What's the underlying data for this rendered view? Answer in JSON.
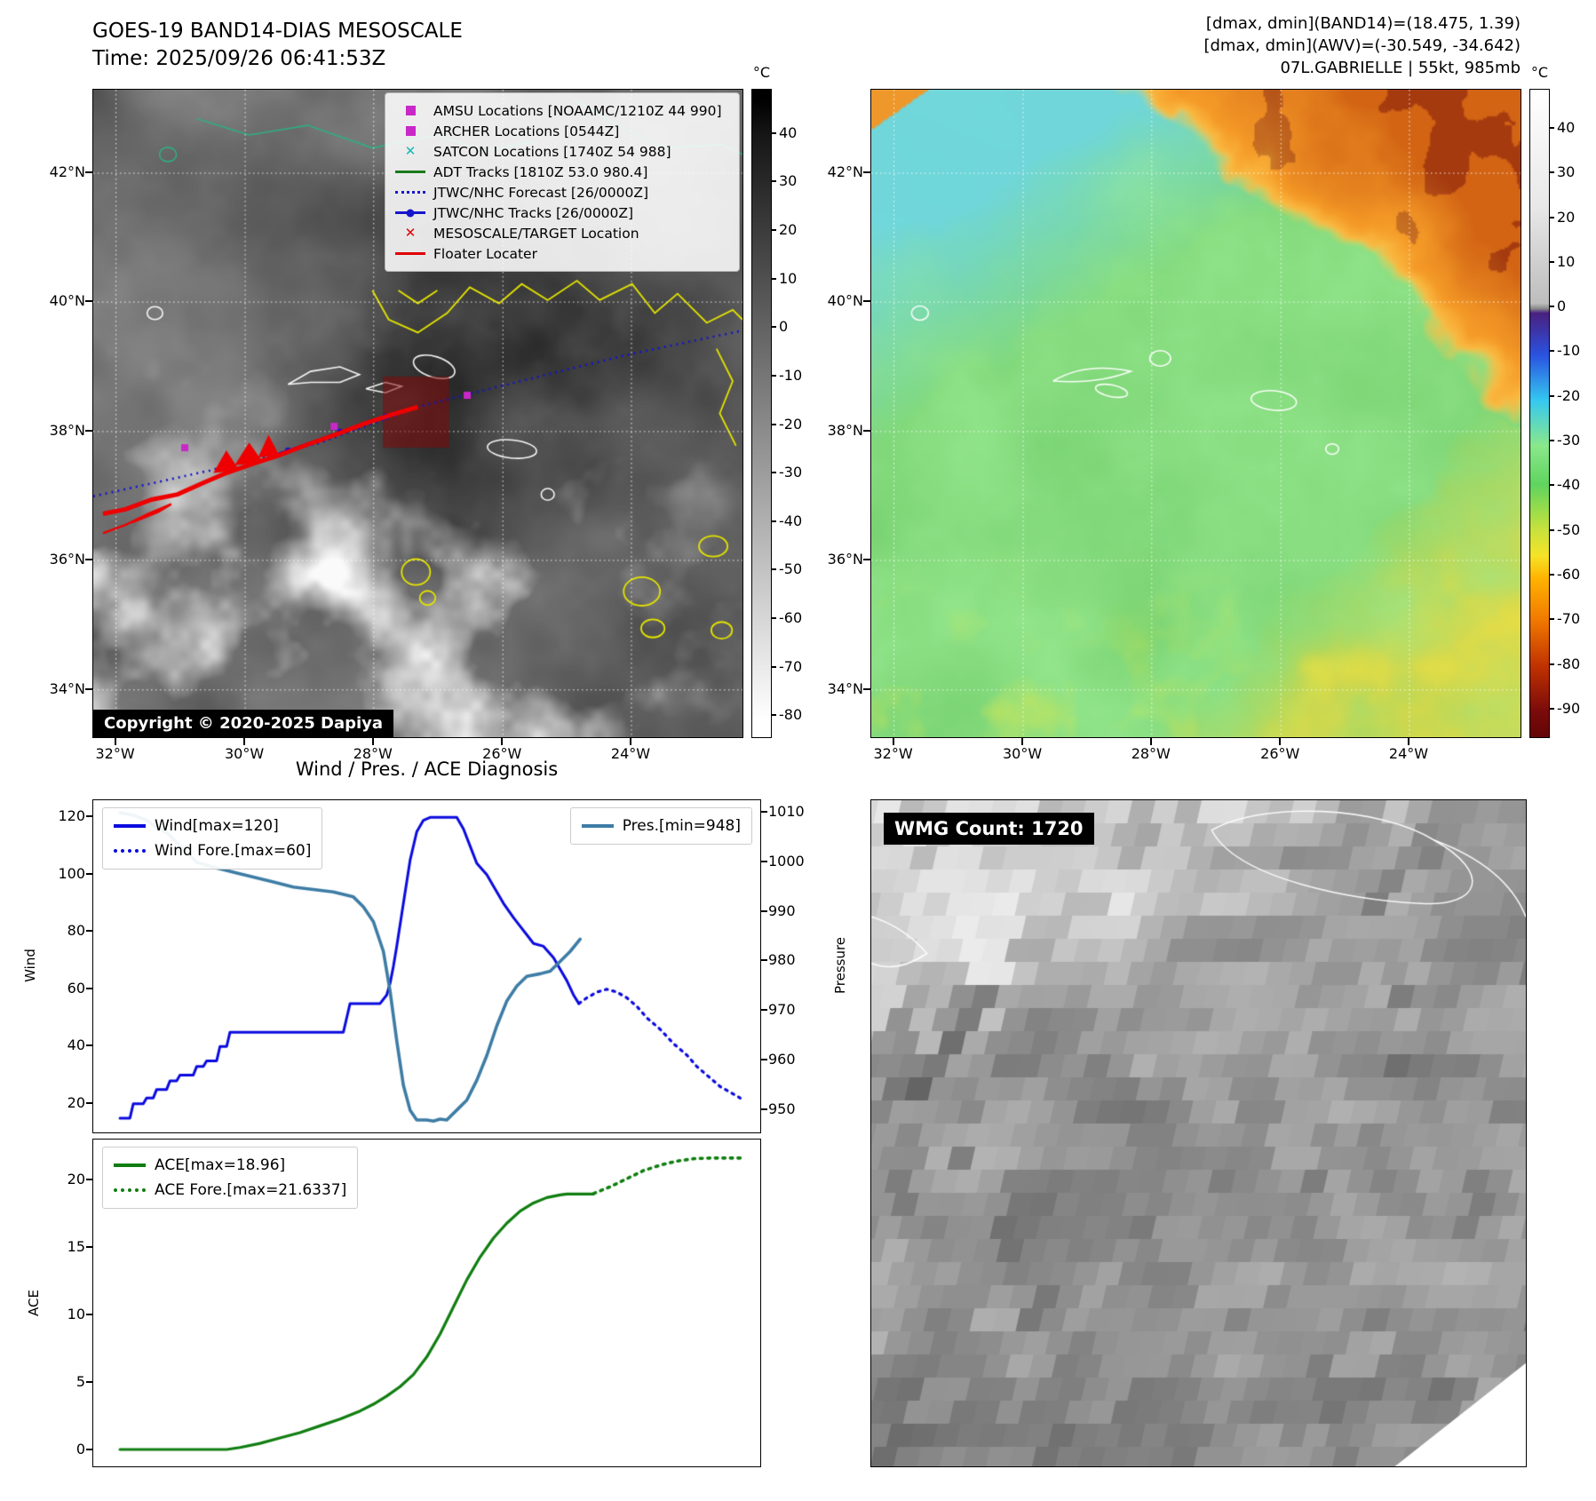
{
  "band14": {
    "title": "GOES-19 BAND14-DIAS MESOSCALE",
    "time": "Time: 2025/09/26 06:41:53Z",
    "copyright": "Copyright © 2020-2025 Dapiya",
    "colorbar_unit": "°C",
    "colorbar_ticks": [
      40,
      30,
      20,
      10,
      0,
      -10,
      -20,
      -30,
      -40,
      -50,
      -60,
      -70,
      -80
    ],
    "lat_ticks": [
      "42°N",
      "40°N",
      "38°N",
      "36°N",
      "34°N"
    ],
    "lon_ticks": [
      "32°W",
      "30°W",
      "28°W",
      "26°W",
      "24°W"
    ],
    "legend": [
      {
        "label": "AMSU Locations [NOAAMC/1210Z 44 990]",
        "marker": "square",
        "color": "#c828c8"
      },
      {
        "label": "ARCHER Locations [0544Z]",
        "marker": "square",
        "color": "#c828c8"
      },
      {
        "label": "SATCON Locations [1740Z 54 988]",
        "marker": "x",
        "color": "#17b8b8"
      },
      {
        "label": "ADT Tracks [1810Z 53.0 980.4]",
        "marker": "line",
        "color": "#1a7a1a"
      },
      {
        "label": "JTWC/NHC Forecast [26/0000Z]",
        "marker": "dotted",
        "color": "#1616cc"
      },
      {
        "label": "JTWC/NHC Tracks [26/0000Z]",
        "marker": "line-dot",
        "color": "#1616cc"
      },
      {
        "label": "MESOSCALE/TARGET Location",
        "marker": "x",
        "color": "#e00000"
      },
      {
        "label": "Floater Locater",
        "marker": "line",
        "color": "#e00000"
      }
    ]
  },
  "awv": {
    "header_lines": [
      "[dmax, dmin](BAND14)=(18.475, 1.39)",
      "[dmax, dmin](AWV)=(-30.549, -34.642)",
      "07L.GABRIELLE | 55kt, 985mb"
    ],
    "colorbar_unit": "°C",
    "colorbar_ticks": [
      40,
      30,
      20,
      10,
      0,
      -10,
      -20,
      -30,
      -40,
      -50,
      -60,
      -70,
      -80,
      -90
    ],
    "lat_ticks": [
      "42°N",
      "40°N",
      "38°N",
      "36°N",
      "34°N"
    ],
    "lon_ticks": [
      "32°W",
      "30°W",
      "28°W",
      "26°W",
      "24°W"
    ]
  },
  "wmg": {
    "label": "WMG Count: 1720"
  },
  "chart_data": [
    {
      "type": "line",
      "title": "Wind / Pres. / ACE Diagnosis",
      "ylabel": "Wind",
      "y2label": "Pressure",
      "ylim": [
        10,
        126
      ],
      "y2lim": [
        945.5,
        1012.5
      ],
      "yticks": [
        20,
        40,
        60,
        80,
        100,
        120
      ],
      "y2ticks": [
        950,
        960,
        970,
        980,
        990,
        1000,
        1010
      ],
      "series": [
        {
          "name": "Wind[max=120]",
          "axis": "y",
          "style": "solid",
          "color": "#0a0adf",
          "width": 3,
          "points": [
            [
              0.04,
              15
            ],
            [
              0.055,
              15
            ],
            [
              0.06,
              20
            ],
            [
              0.075,
              20
            ],
            [
              0.08,
              22
            ],
            [
              0.09,
              22
            ],
            [
              0.095,
              25
            ],
            [
              0.11,
              25
            ],
            [
              0.115,
              28
            ],
            [
              0.125,
              28
            ],
            [
              0.13,
              30
            ],
            [
              0.15,
              30
            ],
            [
              0.155,
              33
            ],
            [
              0.165,
              33
            ],
            [
              0.17,
              35
            ],
            [
              0.185,
              35
            ],
            [
              0.19,
              40
            ],
            [
              0.2,
              40
            ],
            [
              0.205,
              45
            ],
            [
              0.375,
              45
            ],
            [
              0.38,
              50
            ],
            [
              0.385,
              55
            ],
            [
              0.43,
              55
            ],
            [
              0.44,
              58
            ],
            [
              0.445,
              62
            ],
            [
              0.45,
              68
            ],
            [
              0.455,
              75
            ],
            [
              0.465,
              90
            ],
            [
              0.475,
              105
            ],
            [
              0.485,
              115
            ],
            [
              0.495,
              119
            ],
            [
              0.505,
              120
            ],
            [
              0.545,
              120
            ],
            [
              0.555,
              116
            ],
            [
              0.565,
              110
            ],
            [
              0.575,
              104
            ],
            [
              0.59,
              100
            ],
            [
              0.6,
              96
            ],
            [
              0.615,
              90
            ],
            [
              0.63,
              85
            ],
            [
              0.64,
              82
            ],
            [
              0.65,
              79
            ],
            [
              0.66,
              76
            ],
            [
              0.675,
              75
            ],
            [
              0.69,
              71
            ],
            [
              0.7,
              67
            ],
            [
              0.71,
              63
            ],
            [
              0.72,
              58
            ],
            [
              0.728,
              55
            ]
          ]
        },
        {
          "name": "Wind Fore.[max=60]",
          "axis": "y",
          "style": "dotted",
          "color": "#0a0adf",
          "width": 3.2,
          "points": [
            [
              0.728,
              55
            ],
            [
              0.74,
              57
            ],
            [
              0.755,
              59
            ],
            [
              0.77,
              60
            ],
            [
              0.785,
              59
            ],
            [
              0.8,
              57
            ],
            [
              0.815,
              54
            ],
            [
              0.83,
              50
            ],
            [
              0.85,
              46
            ],
            [
              0.87,
              41
            ],
            [
              0.89,
              37
            ],
            [
              0.905,
              33
            ],
            [
              0.92,
              30
            ],
            [
              0.94,
              26
            ],
            [
              0.955,
              24
            ],
            [
              0.97,
              22
            ]
          ]
        },
        {
          "name": "Pres.[min=948]",
          "axis": "y2",
          "style": "solid",
          "color": "#3d7ca5",
          "width": 3.6,
          "points": [
            [
              0.04,
              1010
            ],
            [
              0.06,
              1009.5
            ],
            [
              0.08,
              1008.5
            ],
            [
              0.095,
              1007
            ],
            [
              0.11,
              1006
            ],
            [
              0.125,
              1004
            ],
            [
              0.14,
              1002
            ],
            [
              0.155,
              1000
            ],
            [
              0.18,
              999
            ],
            [
              0.21,
              998
            ],
            [
              0.24,
              997
            ],
            [
              0.27,
              996
            ],
            [
              0.3,
              995
            ],
            [
              0.33,
              994.5
            ],
            [
              0.36,
              994
            ],
            [
              0.39,
              993
            ],
            [
              0.405,
              991
            ],
            [
              0.42,
              988
            ],
            [
              0.435,
              982
            ],
            [
              0.445,
              974
            ],
            [
              0.455,
              964
            ],
            [
              0.465,
              955
            ],
            [
              0.475,
              950
            ],
            [
              0.485,
              948
            ],
            [
              0.5,
              948
            ],
            [
              0.51,
              947.8
            ],
            [
              0.52,
              948.2
            ],
            [
              0.53,
              948
            ],
            [
              0.545,
              950
            ],
            [
              0.56,
              952
            ],
            [
              0.575,
              956
            ],
            [
              0.59,
              961
            ],
            [
              0.605,
              967
            ],
            [
              0.62,
              972
            ],
            [
              0.635,
              975
            ],
            [
              0.65,
              977
            ],
            [
              0.67,
              977.5
            ],
            [
              0.685,
              978
            ],
            [
              0.7,
              980
            ],
            [
              0.715,
              982
            ],
            [
              0.73,
              984.5
            ]
          ]
        }
      ]
    },
    {
      "type": "line",
      "ylabel": "ACE",
      "ylim": [
        -1.2,
        23
      ],
      "yticks": [
        0,
        5,
        10,
        15,
        20
      ],
      "series": [
        {
          "name": "ACE[max=18.96]",
          "axis": "y",
          "style": "solid",
          "color": "#0f7d0f",
          "width": 3.2,
          "points": [
            [
              0.04,
              0.05
            ],
            [
              0.2,
              0.05
            ],
            [
              0.22,
              0.2
            ],
            [
              0.25,
              0.5
            ],
            [
              0.28,
              0.9
            ],
            [
              0.31,
              1.3
            ],
            [
              0.34,
              1.8
            ],
            [
              0.37,
              2.3
            ],
            [
              0.4,
              2.9
            ],
            [
              0.42,
              3.4
            ],
            [
              0.44,
              4.0
            ],
            [
              0.46,
              4.7
            ],
            [
              0.48,
              5.6
            ],
            [
              0.5,
              6.9
            ],
            [
              0.52,
              8.6
            ],
            [
              0.54,
              10.6
            ],
            [
              0.56,
              12.6
            ],
            [
              0.58,
              14.3
            ],
            [
              0.6,
              15.7
            ],
            [
              0.62,
              16.8
            ],
            [
              0.64,
              17.7
            ],
            [
              0.66,
              18.3
            ],
            [
              0.68,
              18.7
            ],
            [
              0.7,
              18.9
            ],
            [
              0.71,
              18.96
            ],
            [
              0.75,
              18.96
            ]
          ]
        },
        {
          "name": "ACE Fore.[max=21.6337]",
          "axis": "y",
          "style": "dotted",
          "color": "#0f7d0f",
          "width": 3.6,
          "points": [
            [
              0.75,
              19.0
            ],
            [
              0.775,
              19.5
            ],
            [
              0.8,
              20.1
            ],
            [
              0.825,
              20.7
            ],
            [
              0.85,
              21.1
            ],
            [
              0.875,
              21.4
            ],
            [
              0.9,
              21.58
            ],
            [
              0.925,
              21.63
            ],
            [
              0.97,
              21.63
            ]
          ]
        }
      ]
    }
  ]
}
